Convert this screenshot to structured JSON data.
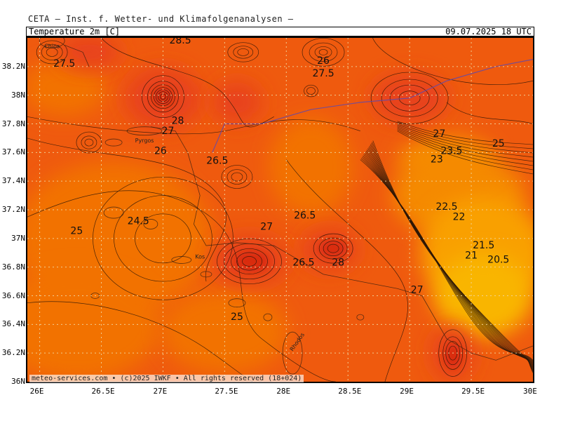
{
  "header": {
    "title": "CETA — Inst. f. Wetter- und Klimafolgenanalysen —"
  },
  "subbar": {
    "left": "Temperature 2m [C]",
    "right": "09.07.2025 18 UTC"
  },
  "footer": {
    "text": "meteo-services.com • (c)2025 IWKF • All rights reserved (18+024)"
  },
  "axes": {
    "lat_labels": [
      "38.2N",
      "38N",
      "37.8N",
      "37.6N",
      "37.4N",
      "37.2N",
      "37N",
      "36.8N",
      "36.6N",
      "36.4N",
      "36.2N",
      "36N"
    ],
    "lon_labels": [
      "26E",
      "26.5E",
      "27E",
      "27.5E",
      "28E",
      "28.5E",
      "29E",
      "29.5E",
      "30E"
    ]
  },
  "contour_labels": [
    {
      "text": "28.5",
      "lon": 27.14,
      "lat": 38.36
    },
    {
      "text": "27.5",
      "lon": 26.2,
      "lat": 38.2
    },
    {
      "text": "26",
      "lon": 28.3,
      "lat": 38.22
    },
    {
      "text": "27.5",
      "lon": 28.3,
      "lat": 38.13
    },
    {
      "text": "28",
      "lon": 27.12,
      "lat": 37.8
    },
    {
      "text": "27",
      "lon": 27.04,
      "lat": 37.73
    },
    {
      "text": "26",
      "lon": 26.98,
      "lat": 37.59
    },
    {
      "text": "27",
      "lon": 29.24,
      "lat": 37.71
    },
    {
      "text": "25",
      "lon": 29.72,
      "lat": 37.64
    },
    {
      "text": "23.5",
      "lon": 29.34,
      "lat": 37.59
    },
    {
      "text": "23",
      "lon": 29.22,
      "lat": 37.53
    },
    {
      "text": "26.5",
      "lon": 27.44,
      "lat": 37.52
    },
    {
      "text": "22.5",
      "lon": 29.3,
      "lat": 37.2
    },
    {
      "text": "22",
      "lon": 29.4,
      "lat": 37.13
    },
    {
      "text": "26.5",
      "lon": 28.15,
      "lat": 37.14
    },
    {
      "text": "24.5",
      "lon": 26.8,
      "lat": 37.1
    },
    {
      "text": "25",
      "lon": 26.3,
      "lat": 37.03
    },
    {
      "text": "27",
      "lon": 27.84,
      "lat": 37.06
    },
    {
      "text": "21.5",
      "lon": 29.6,
      "lat": 36.93
    },
    {
      "text": "21",
      "lon": 29.5,
      "lat": 36.86
    },
    {
      "text": "20.5",
      "lon": 29.72,
      "lat": 36.83
    },
    {
      "text": "26.5",
      "lon": 28.14,
      "lat": 36.81
    },
    {
      "text": "28",
      "lon": 28.42,
      "lat": 36.81
    },
    {
      "text": "27",
      "lon": 29.06,
      "lat": 36.62
    },
    {
      "text": "25",
      "lon": 27.6,
      "lat": 36.43
    }
  ],
  "place_labels": [
    {
      "text": "Chios",
      "lon": 26.1,
      "lat": 38.33
    },
    {
      "text": "Pyrgos",
      "lon": 26.85,
      "lat": 37.67
    },
    {
      "text": "Kos",
      "lon": 27.3,
      "lat": 36.86
    },
    {
      "text": "Rhodos",
      "lon": 28.1,
      "lat": 36.27
    }
  ],
  "colors": {
    "t20": "#f9b500",
    "t22": "#f9a000",
    "t24": "#f58a00",
    "t25": "#f27200",
    "t27": "#ef5a0e",
    "t28": "#e8421a",
    "t29": "#d92a10",
    "contour": "#2b1608"
  }
}
